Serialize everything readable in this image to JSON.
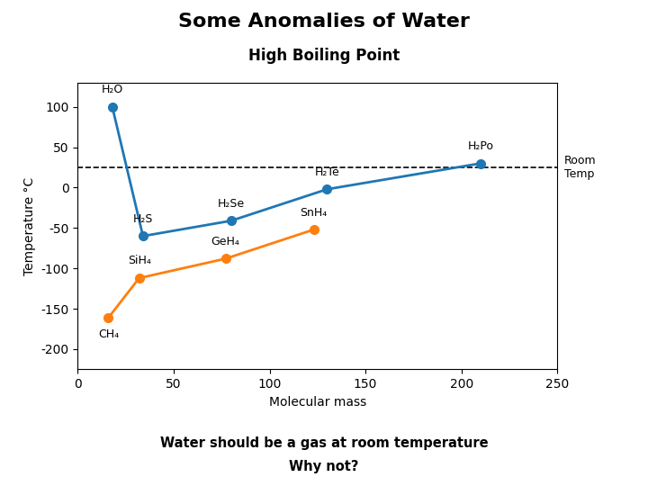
{
  "chart_data": {
    "type": "line",
    "title": "Some Anomalies of Water",
    "subtitle": "High Boiling Point",
    "x_label": "Molecular mass",
    "y_label": "Temperature °C",
    "notes": [
      "Water should be a gas at room temperature",
      "Why not?"
    ],
    "reference_line": {
      "y": 25,
      "label": "Room\nTemp",
      "line_style": "--"
    },
    "xlim": [
      0,
      250
    ],
    "ylim": [
      -225,
      130
    ],
    "xticks": [
      0,
      50,
      100,
      150,
      200,
      250
    ],
    "yticks": [
      -200,
      -150,
      -100,
      -50,
      0,
      50,
      100
    ],
    "series": [
      {
        "x": [
          18,
          34,
          80,
          130,
          210
        ],
        "values": [
          100,
          -60,
          -41,
          -2,
          30
        ],
        "point_labels": [
          "H₂O",
          "H₂S",
          "H₂Se",
          "H₂Te",
          "H₂Po"
        ],
        "marker": "o",
        "line_style": "-"
      },
      {
        "x": [
          16,
          32,
          77,
          123
        ],
        "values": [
          -161,
          -112,
          -88,
          -52
        ],
        "point_labels": [
          "CH₄",
          "SiH₄",
          "GeH₄",
          "SnH₄"
        ],
        "marker": "o",
        "line_style": "-"
      }
    ]
  }
}
